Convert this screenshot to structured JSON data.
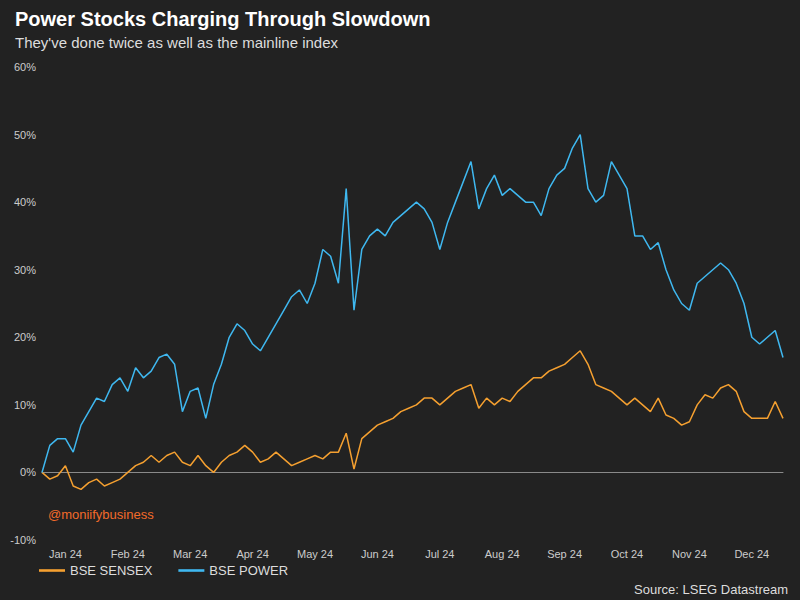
{
  "chart_data": {
    "type": "line",
    "title": "Power Stocks Charging Through Slowdown",
    "subtitle": "They've done twice as well as the mainline index",
    "annotations": [
      "@moniifybusiness"
    ],
    "source": "Source: LSEG Datastream",
    "categories": [
      null,
      null,
      null,
      "Jan 24",
      null,
      null,
      null,
      null,
      null,
      null,
      null,
      "Feb 24",
      null,
      null,
      null,
      null,
      null,
      null,
      null,
      "Mar 24",
      null,
      null,
      null,
      null,
      null,
      null,
      null,
      "Apr 24",
      null,
      null,
      null,
      null,
      null,
      null,
      null,
      "May 24",
      null,
      null,
      null,
      null,
      null,
      null,
      null,
      "Jun 24",
      null,
      null,
      null,
      null,
      null,
      null,
      null,
      "Jul 24",
      null,
      null,
      null,
      null,
      null,
      null,
      null,
      "Aug 24",
      null,
      null,
      null,
      null,
      null,
      null,
      null,
      "Sep 24",
      null,
      null,
      null,
      null,
      null,
      null,
      null,
      "Oct 24",
      null,
      null,
      null,
      null,
      null,
      null,
      null,
      "Nov 24",
      null,
      null,
      null,
      null,
      null,
      null,
      null,
      "Dec 24",
      null,
      null,
      null,
      null
    ],
    "series": [
      {
        "name": "BSE SENSEX",
        "color": "#f5a030",
        "values": [
          0,
          -1,
          -0.5,
          1,
          -2,
          -2.5,
          -1.5,
          -1,
          -2,
          -1.5,
          -1,
          0,
          1,
          1.5,
          2.5,
          1.5,
          2.5,
          3,
          1.5,
          1,
          2.5,
          1,
          0,
          1.5,
          2.5,
          3,
          4,
          3,
          1.5,
          2,
          3,
          2,
          1,
          1.5,
          2,
          2.5,
          2,
          3,
          3,
          5.8,
          0.5,
          5,
          6,
          7,
          7.5,
          8,
          9,
          9.5,
          10,
          11,
          11,
          10,
          11,
          12,
          12.5,
          13,
          9.5,
          11,
          10,
          11,
          10.5,
          12,
          13,
          14,
          14,
          15,
          15.5,
          16,
          17,
          18,
          16,
          13,
          12.5,
          12,
          11,
          10,
          11,
          10,
          9,
          11,
          8.5,
          8,
          7,
          7.5,
          10,
          11.5,
          11,
          12.5,
          13,
          12,
          9,
          8,
          8,
          8,
          10.5,
          8
        ]
      },
      {
        "name": "BSE POWER",
        "color": "#3fb8f0",
        "values": [
          0,
          4,
          5,
          5,
          3,
          7,
          9,
          11,
          10.5,
          13,
          14,
          12,
          15.5,
          14,
          15,
          17,
          17.5,
          16,
          9,
          12,
          12.5,
          8,
          13,
          16,
          20,
          22,
          21,
          19,
          18,
          20,
          22,
          24,
          26,
          27,
          25,
          28,
          33,
          32,
          28,
          42,
          24,
          33,
          35,
          36,
          35,
          37,
          38,
          39,
          40,
          39,
          37,
          33,
          37,
          40,
          43,
          46,
          39,
          42,
          44,
          41,
          42,
          41,
          40,
          40,
          38,
          42,
          44,
          45,
          48,
          50,
          42,
          40,
          41,
          46,
          44,
          42,
          35,
          35,
          33,
          34,
          30,
          27,
          25,
          24,
          28,
          29,
          30,
          31,
          30,
          28,
          25,
          20,
          19,
          20,
          21,
          17
        ]
      }
    ],
    "ylim": [
      -10,
      60
    ],
    "yticks": [
      {
        "value": -10,
        "label": "-10%"
      },
      {
        "value": 0,
        "label": "0%"
      },
      {
        "value": 10,
        "label": "10%"
      },
      {
        "value": 20,
        "label": "20%"
      },
      {
        "value": 30,
        "label": "30%"
      },
      {
        "value": 40,
        "label": "40%"
      },
      {
        "value": 50,
        "label": "50%"
      },
      {
        "value": 60,
        "label": "60%"
      }
    ],
    "grid": false,
    "legend": "bottom-left"
  }
}
